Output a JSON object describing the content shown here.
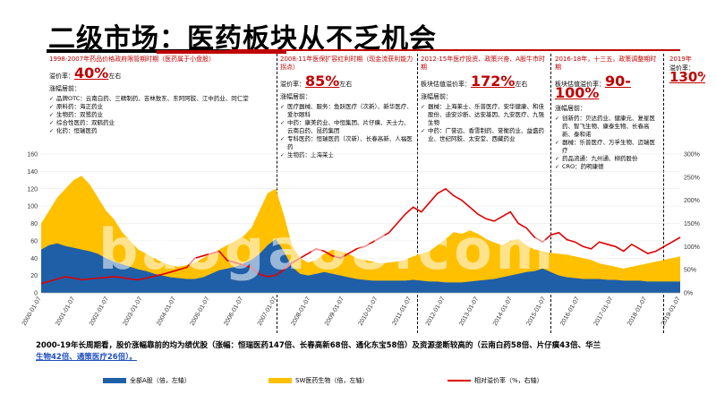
{
  "title": "二级市场：医药板块从不乏机会",
  "periods": [
    {
      "head": "1998-2007年药品价格政府限管期时期（医药属于小盘股）",
      "val_label": "溢价率：",
      "val": "40%",
      "suffix": "左右",
      "sub": "涨幅居前：",
      "items": [
        "品牌OTC：云南白药、三精制药、吉林敖东、东阿阿胶、江中药业、同仁堂",
        "原料药：海正药业",
        "生物药：双鹭药业",
        "综合性医药：双鹤药业",
        "化药：恒瑞医药"
      ]
    },
    {
      "head": "2008-11年医保扩容红利时期（现金流获利能力拐点）",
      "val_label": "溢价率：",
      "val": "85%",
      "suffix": "左右",
      "sub": "涨幅居前：",
      "items": [
        "医疗器械、服务：鱼跃医疗（次新）、新华医疗、爱尔眼科",
        "中药：康美药业、中恒集团、片仔癀、天士力、云南白药、昆药集团",
        "专科医药：恒瑞医药（次新）、长春高新、人福医药",
        "生物药：上海莱士"
      ]
    },
    {
      "head": "2012-15年医疗投资、政策兴奋、A股牛市时期",
      "val_label": "板块估值溢价率：",
      "val": "172%",
      "suffix": "左右",
      "sub": "涨幅居前：",
      "items": [
        "器械：上海莱士、乐普医疗、安华健康、和佳股份、迪安诊断、达安基因、九安医疗、九强生物",
        "中药：广誉远、香雪制药、誉衡药业、益盛药业、世纪阿胶、太安堂、西藏药业"
      ]
    },
    {
      "head": "2016-18年，十三五，政策调整期时期",
      "val_label": "板块估值溢价率：",
      "val": "90-100%",
      "suffix": "",
      "sub": "涨幅居前：",
      "items": [
        "创新药：贝达药业、健康元、复星医药、智飞生物、康泰生物、长春高新、泰和诺",
        "器械：乐普医疗、万孚生物、迈瑞医疗",
        "药品流通：九州通、柳药股份",
        "CRO：药明康德"
      ]
    },
    {
      "head": "2019年",
      "val_label": "溢价率：",
      "val": "130%",
      "suffix": "",
      "sub": "",
      "items": []
    }
  ],
  "chart_data": {
    "type": "area",
    "x_tick_labels": [
      "2000-01-07",
      "2001-01-07",
      "2002-01-07",
      "2003-01-07",
      "2004-01-07",
      "2005-01-07",
      "2006-01-07",
      "2007-01-07",
      "2008-01-07",
      "2009-01-07",
      "2010-01-07",
      "2011-01-07",
      "2012-01-07",
      "2013-01-07",
      "2014-01-07",
      "2015-01-07",
      "2016-01-07",
      "2017-01-07",
      "2018-01-07",
      "2019-01-07"
    ],
    "ylim_left": [
      0,
      160
    ],
    "y_ticks_left": [
      0,
      20,
      40,
      60,
      80,
      100,
      120,
      140,
      160
    ],
    "ylim_right": [
      0,
      300
    ],
    "y_ticks_right": [
      "0%",
      "50%",
      "100%",
      "150%",
      "200%",
      "250%",
      "300%"
    ],
    "series": [
      {
        "name": "全部A股（倍，左轴）",
        "axis": "left",
        "color": "#1f5fa8",
        "values": [
          50,
          55,
          57,
          54,
          52,
          50,
          48,
          45,
          40,
          36,
          33,
          30,
          27,
          25,
          22,
          20,
          18,
          17,
          16,
          16,
          18,
          22,
          26,
          28,
          30,
          34,
          38,
          45,
          55,
          62,
          48,
          30,
          22,
          20,
          22,
          24,
          22,
          20,
          18,
          16,
          15,
          14,
          14,
          14,
          14,
          14,
          15,
          14,
          13,
          13,
          12,
          12,
          12,
          13,
          14,
          15,
          16,
          18,
          20,
          22,
          24,
          25,
          28,
          24,
          20,
          18,
          17,
          16,
          16,
          16,
          15,
          15,
          14,
          14,
          14,
          13,
          13,
          13,
          13,
          13
        ]
      },
      {
        "name": "SW医药生物（倍，左轴）",
        "axis": "left",
        "color": "#ffc000",
        "values": [
          80,
          95,
          110,
          120,
          130,
          135,
          125,
          110,
          95,
          85,
          70,
          60,
          50,
          45,
          40,
          35,
          32,
          30,
          32,
          35,
          40,
          45,
          50,
          55,
          60,
          65,
          75,
          95,
          115,
          120,
          90,
          55,
          40,
          35,
          38,
          45,
          50,
          48,
          45,
          40,
          38,
          36,
          34,
          35,
          36,
          38,
          42,
          45,
          48,
          55,
          62,
          70,
          68,
          72,
          68,
          62,
          58,
          55,
          60,
          62,
          55,
          50,
          48,
          46,
          45,
          44,
          42,
          40,
          38,
          34,
          32,
          30,
          28,
          30,
          32,
          34,
          36,
          38,
          40,
          42
        ]
      },
      {
        "name": "相对溢价率（%，右轴）",
        "axis": "right",
        "color": "#e00000",
        "values": [
          20,
          25,
          30,
          35,
          32,
          28,
          30,
          32,
          33,
          35,
          33,
          30,
          28,
          32,
          36,
          40,
          45,
          50,
          55,
          75,
          80,
          85,
          90,
          70,
          65,
          60,
          55,
          40,
          35,
          38,
          50,
          65,
          75,
          85,
          95,
          90,
          80,
          75,
          85,
          95,
          100,
          110,
          120,
          130,
          150,
          170,
          185,
          175,
          195,
          215,
          225,
          210,
          200,
          185,
          170,
          160,
          155,
          165,
          175,
          150,
          140,
          120,
          110,
          125,
          130,
          115,
          110,
          100,
          95,
          110,
          105,
          100,
          90,
          105,
          95,
          85,
          90,
          100,
          110,
          120
        ]
      }
    ]
  },
  "footnote": {
    "text": "2000-19年长周期看，股价涨幅靠前的均为绩优股（涨幅：恒瑞医药147倍、长春高新68倍、通化东宝58倍）及资源垄断较高的（云南白药58倍、片仔癀43倍、华兰",
    "link_text": "生物42倍、通策医疗26倍）。"
  },
  "watermark": "baogao8.com",
  "colors": {
    "accent_red": "#c00000",
    "blue": "#1f5fa8",
    "gold": "#ffc000",
    "line_red": "#e00000"
  }
}
